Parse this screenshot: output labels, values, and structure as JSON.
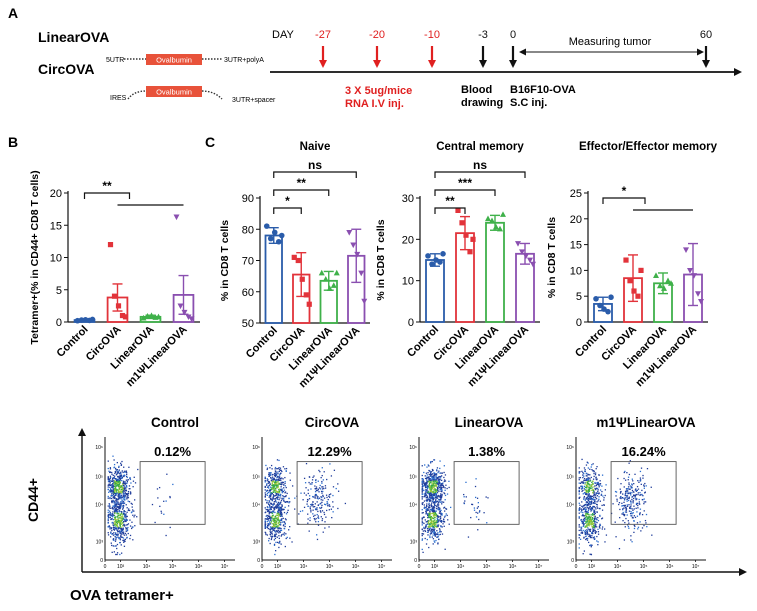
{
  "panel_labels": {
    "a": "A",
    "b": "B",
    "c": "C"
  },
  "timeline": {
    "constructs": {
      "linear_name": "LinearOVA",
      "linear_left": "5UTR",
      "linear_gene": "Ovalbumin",
      "linear_right": "3UTR+polyA",
      "circ_name": "CircOVA",
      "circ_left": "IRES",
      "circ_gene": "Ovalbumin",
      "circ_right": "3UTR+spacer",
      "gene_color": "#e8523a"
    },
    "day_label": "DAY",
    "days": [
      {
        "text": "-27",
        "color": "#e02020"
      },
      {
        "text": "-20",
        "color": "#e02020"
      },
      {
        "text": "-10",
        "color": "#e02020"
      },
      {
        "text": "-3",
        "color": "#111111"
      },
      {
        "text": "0",
        "color": "#111111"
      },
      {
        "text": "60",
        "color": "#111111"
      }
    ],
    "measuring_label": "Measuring tumor",
    "injection_line1": "3 X 5ug/mice",
    "injection_line2": "RNA I.V inj.",
    "blood_line1": "Blood",
    "blood_line2": "drawing",
    "tumor_line1": "B16F10-OVA",
    "tumor_line2": "S.C inj."
  },
  "colors": {
    "Control": "#2a5caa",
    "CircOVA": "#e2333a",
    "LinearOVA": "#3fb14a",
    "m1ΨLinearOVA": "#8a4fb0"
  },
  "chart_data": [
    {
      "panel": "B",
      "type": "bar",
      "title": "",
      "categories": [
        "Control",
        "CircOVA",
        "LinearOVA",
        "m1ΨLinearOVA"
      ],
      "values": [
        0.3,
        3.8,
        0.8,
        4.2
      ],
      "errors": [
        0.15,
        2.1,
        0.25,
        3.0
      ],
      "points": [
        [
          0.2,
          0.3,
          0.35,
          0.25,
          0.4
        ],
        [
          12.0,
          4.0,
          2.5,
          1.0,
          0.8
        ],
        [
          0.6,
          0.9,
          1.0,
          0.7,
          0.8
        ],
        [
          16.3,
          2.5,
          1.5,
          0.8,
          0.5
        ]
      ],
      "ylabel": "Tetramer+(% in CD44+ CD8 T cells)",
      "ylim": [
        0,
        20
      ],
      "yticks": [
        0,
        5,
        10,
        15,
        20
      ],
      "significance": [
        {
          "text": "**",
          "from": "Control",
          "to": "CircOVA",
          "to2": "m1ΨLinearOVA"
        }
      ]
    },
    {
      "panel": "C",
      "type": "bar",
      "title": "Naive",
      "categories": [
        "Control",
        "CircOVA",
        "LinearOVA",
        "m1ΨLinearOVA"
      ],
      "values": [
        78,
        65.5,
        63.5,
        71.5
      ],
      "errors": [
        2.5,
        7.0,
        3.0,
        8.5
      ],
      "points": [
        [
          81,
          77,
          79,
          76,
          78
        ],
        [
          71,
          70,
          64,
          59,
          56
        ],
        [
          66,
          64,
          61,
          62,
          66
        ],
        [
          79,
          75,
          72,
          66,
          57
        ]
      ],
      "ylabel": "% in CD8 T cells",
      "ylim": [
        50,
        90
      ],
      "yticks": [
        50,
        60,
        70,
        80,
        90
      ],
      "significance": [
        {
          "text": "*",
          "from": "Control",
          "to": "CircOVA"
        },
        {
          "text": "**",
          "from": "Control",
          "to": "LinearOVA"
        },
        {
          "text": "ns",
          "from": "Control",
          "to": "m1ΨLinearOVA"
        }
      ]
    },
    {
      "panel": "C",
      "type": "bar",
      "title": "Central memory",
      "categories": [
        "Control",
        "CircOVA",
        "LinearOVA",
        "m1ΨLinearOVA"
      ],
      "values": [
        15,
        21.5,
        24,
        16.5
      ],
      "errors": [
        1.5,
        4.0,
        1.8,
        2.5
      ],
      "points": [
        [
          16,
          14,
          15,
          14.5,
          16.5
        ],
        [
          27,
          24,
          21,
          17,
          20
        ],
        [
          25,
          24.5,
          23,
          22.5,
          26
        ],
        [
          19,
          17,
          16,
          15,
          14
        ]
      ],
      "ylabel": "% in CD8 T cells",
      "ylim": [
        0,
        30
      ],
      "yticks": [
        0,
        10,
        20,
        30
      ],
      "significance": [
        {
          "text": "**",
          "from": "Control",
          "to": "CircOVA"
        },
        {
          "text": "***",
          "from": "Control",
          "to": "LinearOVA"
        },
        {
          "text": "ns",
          "from": "Control",
          "to": "m1ΨLinearOVA"
        }
      ]
    },
    {
      "panel": "C",
      "type": "bar",
      "title": "Effector/Effector memory",
      "categories": [
        "Control",
        "CircOVA",
        "LinearOVA",
        "m1ΨLinearOVA"
      ],
      "values": [
        3.5,
        8.5,
        7.5,
        9.2
      ],
      "errors": [
        1.3,
        4.5,
        2.0,
        6.0
      ],
      "points": [
        [
          4.5,
          3.2,
          2.5,
          2.0,
          4.8
        ],
        [
          12.0,
          8.0,
          6.0,
          5.0,
          10.0
        ],
        [
          9.0,
          7.0,
          6.5,
          8.0,
          7.5
        ],
        [
          14.0,
          10.0,
          9.0,
          5.5,
          4.0
        ]
      ],
      "ylabel": "% in CD8 T cells",
      "ylim": [
        0,
        25
      ],
      "yticks": [
        0,
        5,
        10,
        15,
        20,
        25
      ],
      "significance": [
        {
          "text": "*",
          "from": "Control",
          "to": "CircOVA",
          "to2": "m1ΨLinearOVA"
        }
      ]
    }
  ],
  "flow": {
    "ylabel": "CD44+",
    "xlabel": "OVA tetramer+",
    "ticks": [
      "0",
      "10³",
      "10⁴",
      "10⁵",
      "10⁶",
      "10⁷"
    ],
    "yticks": [
      "0",
      "10³",
      "10⁴",
      "10⁵",
      "10⁶"
    ],
    "plots": [
      {
        "title": "Control",
        "percent": "0.12%"
      },
      {
        "title": "CircOVA",
        "percent": "12.29%"
      },
      {
        "title": "LinearOVA",
        "percent": "1.38%"
      },
      {
        "title": "m1ΨLinearOVA",
        "percent": "16.24%"
      }
    ]
  }
}
